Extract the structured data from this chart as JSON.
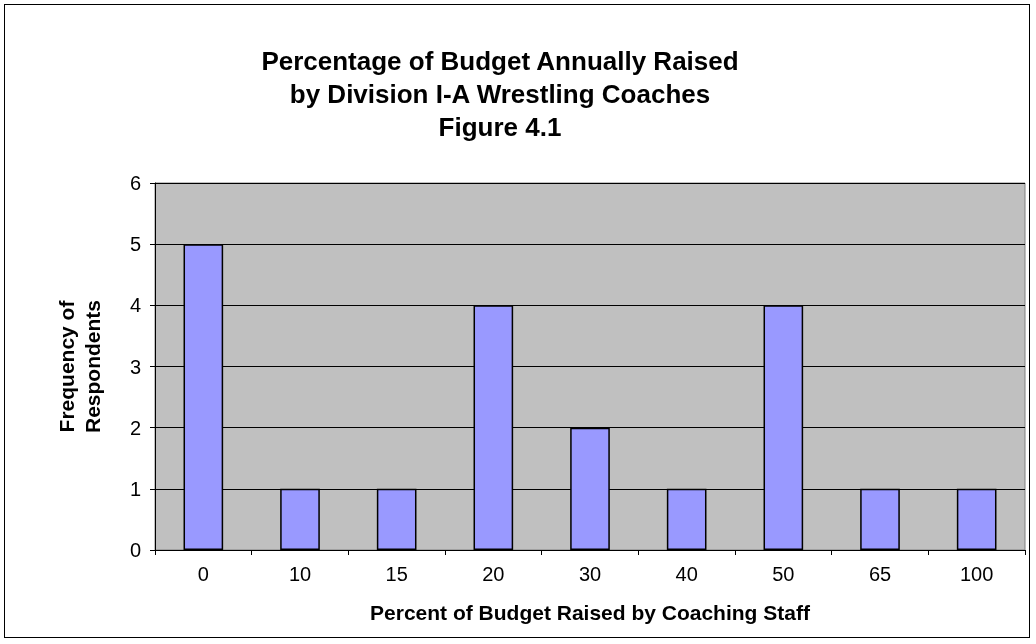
{
  "chart_data": {
    "type": "bar",
    "title": "Percentage of Budget Annually Raised\nby Division I-A Wrestling Coaches\nFigure 4.1",
    "xlabel": "Percent of Budget Raised by Coaching Staff",
    "ylabel": "Frequency of\nRespondents",
    "categories": [
      "0",
      "10",
      "15",
      "20",
      "30",
      "40",
      "50",
      "65",
      "100"
    ],
    "values": [
      5,
      1,
      1,
      4,
      2,
      1,
      4,
      1,
      1
    ],
    "color": "#9999ff",
    "ylim": [
      0,
      6
    ],
    "yticks": [
      0,
      1,
      2,
      3,
      4,
      5,
      6
    ],
    "grid": "y"
  }
}
